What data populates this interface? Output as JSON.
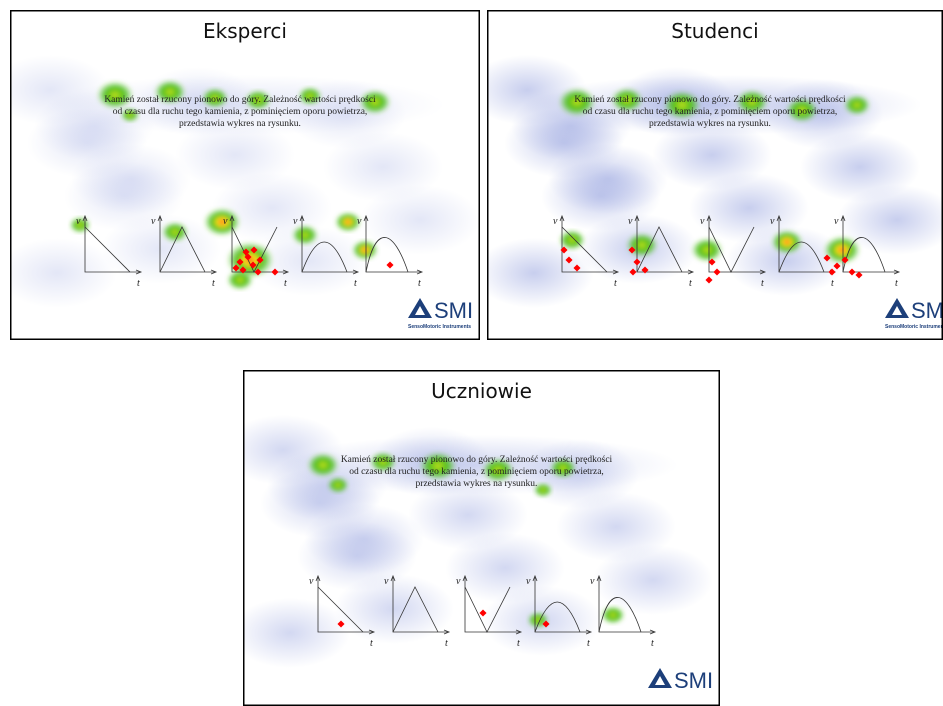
{
  "panels": [
    {
      "title": "Eksperci",
      "question": [
        "Kamień został rzucony pionowo do góry. Zależność wartości prędkości",
        "od czasu dla ruchu tego kamienia, z pominięciem oporu powietrza,",
        "przedstawia wykres na rysunku."
      ],
      "axis_labels": {
        "y": "v",
        "x": "t"
      },
      "logo": "SMI",
      "logo_caption": "SensoMotoric Instruments"
    },
    {
      "title": "Studenci",
      "question": [
        "Kamień został rzucony pionowo do góry. Zależność wartości prędkości",
        "od czasu dla ruchu tego kamienia, z pominięciem oporu powietrza,",
        "przedstawia wykres na rysunku."
      ],
      "axis_labels": {
        "y": "v",
        "x": "t"
      },
      "logo": "SMI",
      "logo_caption": "SensoMotoric Instruments"
    },
    {
      "title": "Uczniowie",
      "question": [
        "Kamień został rzucony pionowo do góry. Zależność wartości prędkości",
        "od czasu dla ruchu tego kamienia, z pominięciem oporu powietrza,",
        "przedstawia wykres na rysunku."
      ],
      "axis_labels": {
        "y": "v",
        "x": "t"
      },
      "logo": "SMI"
    }
  ]
}
